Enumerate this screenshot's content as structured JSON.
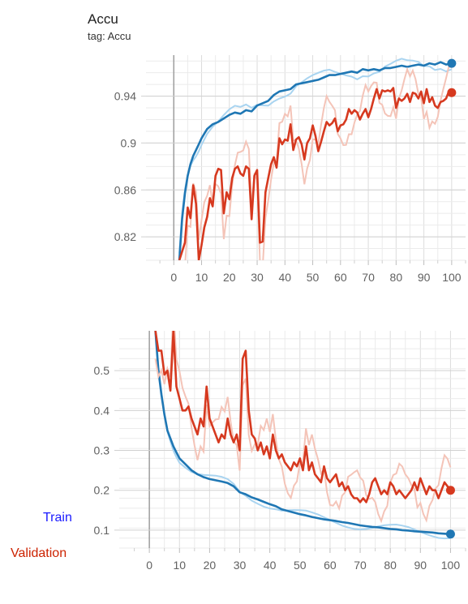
{
  "chart_data": [
    {
      "type": "line",
      "title": "Accu",
      "subtitle": "tag: Accu",
      "xlim": [
        -10,
        105
      ],
      "ylim": [
        0.8,
        0.975
      ],
      "xticks": [
        0,
        10,
        20,
        30,
        40,
        50,
        60,
        70,
        80,
        90,
        100
      ],
      "yticks": [
        0.82,
        0.86,
        0.9,
        0.94
      ],
      "ytick_labels": [
        "0.82",
        "0.86",
        "0.9",
        "0.94"
      ],
      "grid": true,
      "series": [
        {
          "color": "#1f77b4",
          "x": [
            2,
            3,
            4,
            5,
            6,
            7,
            8,
            9,
            10,
            12,
            14,
            16,
            18,
            20,
            22,
            24,
            26,
            28,
            30,
            32,
            34,
            36,
            38,
            40,
            42,
            44,
            46,
            48,
            50,
            52,
            54,
            56,
            58,
            60,
            62,
            64,
            66,
            68,
            70,
            72,
            74,
            76,
            78,
            80,
            82,
            84,
            86,
            88,
            90,
            92,
            94,
            96,
            98,
            100
          ],
          "y": [
            0.8,
            0.835,
            0.857,
            0.872,
            0.882,
            0.889,
            0.894,
            0.899,
            0.904,
            0.912,
            0.916,
            0.918,
            0.921,
            0.924,
            0.926,
            0.925,
            0.928,
            0.927,
            0.932,
            0.934,
            0.936,
            0.941,
            0.944,
            0.945,
            0.946,
            0.95,
            0.951,
            0.952,
            0.953,
            0.954,
            0.956,
            0.958,
            0.958,
            0.959,
            0.96,
            0.961,
            0.96,
            0.963,
            0.962,
            0.963,
            0.962,
            0.964,
            0.964,
            0.965,
            0.966,
            0.965,
            0.966,
            0.967,
            0.966,
            0.968,
            0.967,
            0.969,
            0.967,
            0.968
          ]
        },
        {
          "color": "#d6391f",
          "x": [
            2,
            4,
            5,
            6,
            7,
            8,
            9,
            10,
            11,
            12,
            13,
            14,
            15,
            16,
            17,
            18,
            19,
            20,
            21,
            22,
            23,
            24,
            25,
            26,
            27,
            28,
            29,
            30,
            31,
            32,
            33,
            34,
            35,
            36,
            37,
            38,
            39,
            40,
            41,
            42,
            43,
            44,
            45,
            46,
            47,
            48,
            49,
            50,
            51,
            52,
            53,
            54,
            55,
            56,
            57,
            58,
            59,
            60,
            61,
            62,
            63,
            64,
            65,
            66,
            67,
            68,
            69,
            70,
            71,
            72,
            73,
            74,
            75,
            76,
            77,
            78,
            79,
            80,
            81,
            82,
            83,
            84,
            85,
            86,
            87,
            88,
            89,
            90,
            91,
            92,
            93,
            94,
            95,
            96,
            97,
            98,
            99,
            100
          ],
          "y": [
            0.8,
            0.815,
            0.845,
            0.836,
            0.864,
            0.848,
            0.8,
            0.813,
            0.828,
            0.837,
            0.853,
            0.846,
            0.872,
            0.878,
            0.877,
            0.84,
            0.858,
            0.852,
            0.87,
            0.878,
            0.88,
            0.874,
            0.872,
            0.88,
            0.878,
            0.835,
            0.872,
            0.877,
            0.815,
            0.816,
            0.858,
            0.87,
            0.882,
            0.888,
            0.879,
            0.904,
            0.899,
            0.903,
            0.902,
            0.916,
            0.894,
            0.903,
            0.905,
            0.899,
            0.886,
            0.9,
            0.904,
            0.915,
            0.906,
            0.893,
            0.901,
            0.91,
            0.918,
            0.915,
            0.917,
            0.921,
            0.91,
            0.915,
            0.916,
            0.92,
            0.929,
            0.925,
            0.928,
            0.926,
            0.92,
            0.925,
            0.929,
            0.922,
            0.929,
            0.938,
            0.946,
            0.938,
            0.945,
            0.944,
            0.945,
            0.944,
            0.947,
            0.93,
            0.938,
            0.936,
            0.938,
            0.942,
            0.935,
            0.943,
            0.942,
            0.938,
            0.944,
            0.934,
            0.946,
            0.935,
            0.939,
            0.932,
            0.93,
            0.935,
            0.936,
            0.938,
            0.944,
            0.943
          ]
        }
      ]
    },
    {
      "type": "line",
      "xlim": [
        -10,
        105
      ],
      "ylim": [
        0.055,
        0.6
      ],
      "xticks": [
        0,
        10,
        20,
        30,
        40,
        50,
        60,
        70,
        80,
        90,
        100
      ],
      "yticks": [
        0.1,
        0.2,
        0.3,
        0.4,
        0.5
      ],
      "ytick_labels": [
        "0.1",
        "0.2",
        "0.3",
        "0.4",
        "0.5"
      ],
      "grid": true,
      "series": [
        {
          "name": "Train",
          "color": "#1f77b4",
          "x": [
            2,
            3,
            4,
            5,
            6,
            7,
            8,
            9,
            10,
            12,
            14,
            16,
            18,
            20,
            22,
            24,
            26,
            28,
            30,
            32,
            34,
            36,
            38,
            40,
            42,
            44,
            46,
            48,
            50,
            52,
            54,
            56,
            58,
            60,
            62,
            64,
            66,
            68,
            70,
            72,
            74,
            76,
            78,
            80,
            82,
            84,
            86,
            88,
            90,
            92,
            94,
            96,
            98,
            100
          ],
          "y": [
            0.6,
            0.5,
            0.44,
            0.39,
            0.35,
            0.33,
            0.31,
            0.295,
            0.28,
            0.265,
            0.25,
            0.24,
            0.233,
            0.228,
            0.225,
            0.222,
            0.218,
            0.21,
            0.195,
            0.19,
            0.182,
            0.177,
            0.171,
            0.165,
            0.16,
            0.152,
            0.148,
            0.144,
            0.14,
            0.137,
            0.133,
            0.13,
            0.127,
            0.125,
            0.123,
            0.12,
            0.118,
            0.115,
            0.112,
            0.11,
            0.108,
            0.107,
            0.105,
            0.103,
            0.102,
            0.1,
            0.099,
            0.097,
            0.096,
            0.095,
            0.094,
            0.092,
            0.091,
            0.09
          ]
        },
        {
          "name": "Validation",
          "color": "#d6391f",
          "x": [
            2,
            3,
            4,
            5,
            6,
            7,
            8,
            9,
            10,
            11,
            12,
            13,
            14,
            15,
            16,
            17,
            18,
            19,
            20,
            21,
            22,
            23,
            24,
            25,
            26,
            27,
            28,
            29,
            30,
            31,
            32,
            33,
            34,
            35,
            36,
            37,
            38,
            39,
            40,
            41,
            42,
            43,
            44,
            45,
            46,
            47,
            48,
            49,
            50,
            51,
            52,
            53,
            54,
            55,
            56,
            57,
            58,
            59,
            60,
            61,
            62,
            63,
            64,
            65,
            66,
            67,
            68,
            69,
            70,
            71,
            72,
            73,
            74,
            75,
            76,
            77,
            78,
            79,
            80,
            81,
            82,
            83,
            84,
            85,
            86,
            87,
            88,
            89,
            90,
            91,
            92,
            93,
            94,
            95,
            96,
            97,
            98,
            99,
            100
          ],
          "y": [
            0.6,
            0.55,
            0.55,
            0.49,
            0.5,
            0.45,
            0.6,
            0.46,
            0.43,
            0.4,
            0.4,
            0.41,
            0.38,
            0.36,
            0.34,
            0.38,
            0.36,
            0.46,
            0.38,
            0.36,
            0.34,
            0.32,
            0.34,
            0.33,
            0.38,
            0.34,
            0.32,
            0.34,
            0.3,
            0.53,
            0.55,
            0.4,
            0.34,
            0.33,
            0.3,
            0.32,
            0.29,
            0.31,
            0.28,
            0.34,
            0.3,
            0.28,
            0.29,
            0.27,
            0.26,
            0.25,
            0.27,
            0.26,
            0.28,
            0.25,
            0.31,
            0.25,
            0.27,
            0.24,
            0.23,
            0.22,
            0.26,
            0.23,
            0.22,
            0.23,
            0.24,
            0.21,
            0.22,
            0.2,
            0.21,
            0.19,
            0.18,
            0.18,
            0.17,
            0.18,
            0.17,
            0.19,
            0.22,
            0.23,
            0.21,
            0.19,
            0.2,
            0.19,
            0.22,
            0.21,
            0.19,
            0.2,
            0.19,
            0.18,
            0.19,
            0.2,
            0.22,
            0.2,
            0.23,
            0.21,
            0.19,
            0.21,
            0.2,
            0.2,
            0.18,
            0.2,
            0.22,
            0.21,
            0.2
          ]
        }
      ]
    }
  ]
}
